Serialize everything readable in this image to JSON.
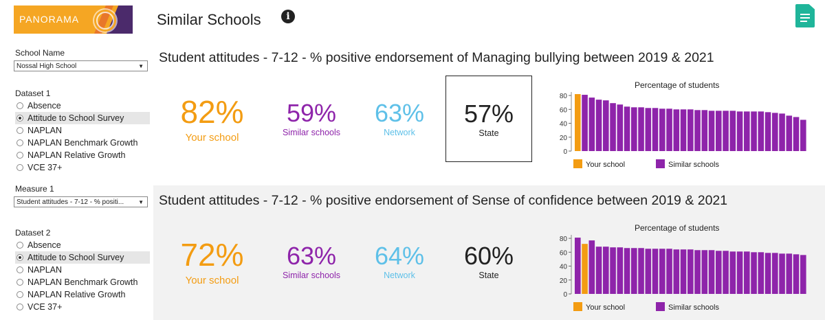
{
  "header": {
    "logo_text": "PANORAMA",
    "title": "Similar Schools",
    "info_icon": "info-icon",
    "report_icon": "document-icon"
  },
  "sidebar": {
    "school_name_label": "School Name",
    "school_name_value": "Nossal High School",
    "dataset1_label": "Dataset 1",
    "dataset1_options": [
      "Absence",
      "Attitude to School Survey",
      "NAPLAN",
      "NAPLAN Benchmark Growth",
      "NAPLAN Relative Growth",
      "VCE 37+"
    ],
    "dataset1_selected": "Attitude to School Survey",
    "measure1_label": "Measure 1",
    "measure1_value": "Student attitudes - 7-12 - % positi...",
    "dataset2_label": "Dataset 2",
    "dataset2_options": [
      "Absence",
      "Attitude to School Survey",
      "NAPLAN",
      "NAPLAN Benchmark Growth",
      "NAPLAN Relative Growth",
      "VCE 37+"
    ],
    "dataset2_selected": "Attitude to School Survey"
  },
  "panels": [
    {
      "title": "Student attitudes - 7-12 - % positive endorsement of Managing bullying between 2019 & 2021",
      "your_school": "82%",
      "your_school_label": "Your school",
      "similar": "59%",
      "similar_label": "Similar schools",
      "network": "63%",
      "network_label": "Network",
      "state": "57%",
      "state_label": "State"
    },
    {
      "title": "Student attitudes - 7-12 - % positive endorsement of Sense of confidence between 2019 & 2021",
      "your_school": "72%",
      "your_school_label": "Your school",
      "similar": "63%",
      "similar_label": "Similar schools",
      "network": "64%",
      "network_label": "Network",
      "state": "60%",
      "state_label": "State"
    }
  ],
  "colors": {
    "orange": "#f39c12",
    "purple": "#8e24aa",
    "blue": "#5ec0e8",
    "teal": "#1fb59a"
  },
  "chart_data": [
    {
      "type": "bar",
      "title": "Percentage of students",
      "yticks": [
        0,
        20,
        40,
        60,
        80
      ],
      "ylim": [
        0,
        85
      ],
      "series": [
        {
          "name": "Your school",
          "color": "#f39c12",
          "values": [
            82
          ]
        },
        {
          "name": "Similar schools",
          "color": "#8e24aa",
          "values": [
            81,
            77,
            74,
            73,
            69,
            67,
            64,
            63,
            63,
            62,
            62,
            61,
            61,
            60,
            60,
            60,
            59,
            59,
            58,
            58,
            58,
            58,
            57,
            57,
            57,
            57,
            56,
            55,
            54,
            51,
            49,
            45
          ]
        }
      ],
      "bar_order": [
        "Your school",
        "Similar schools"
      ]
    },
    {
      "type": "bar",
      "title": "Percentage of students",
      "yticks": [
        0,
        20,
        40,
        60,
        80
      ],
      "ylim": [
        0,
        85
      ],
      "series": [
        {
          "name": "Your school",
          "color": "#f39c12",
          "values": [
            72
          ]
        },
        {
          "name": "Similar schools",
          "color": "#8e24aa",
          "values": [
            81,
            77,
            68,
            68,
            67,
            67,
            66,
            66,
            66,
            65,
            65,
            65,
            65,
            64,
            64,
            64,
            63,
            63,
            63,
            62,
            62,
            61,
            61,
            61,
            60,
            60,
            59,
            59,
            58,
            58,
            57,
            56
          ]
        }
      ],
      "your_school_position": 2
    }
  ]
}
